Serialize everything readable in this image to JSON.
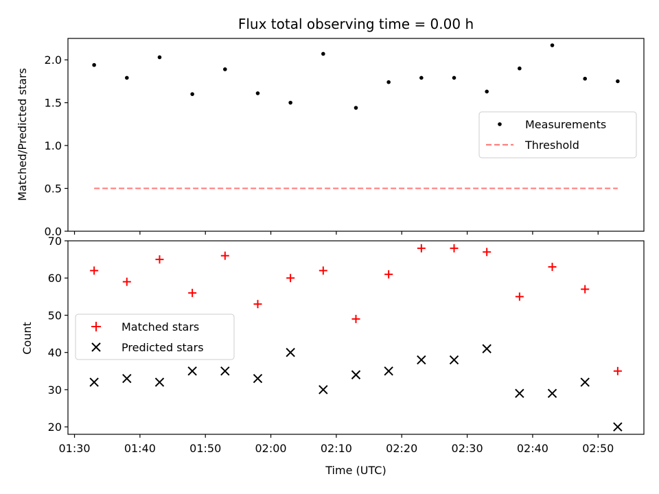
{
  "chart_data": [
    {
      "type": "scatter",
      "title": "Flux total observing time = 0.00 h",
      "xlabel": "",
      "ylabel": "Matched/Predicted stars",
      "ylim": [
        0,
        2.25
      ],
      "yticks": [
        "0.0",
        "0.5",
        "1.0",
        "1.5",
        "2.0"
      ],
      "x": [
        "01:33",
        "01:38",
        "01:43",
        "01:48",
        "01:53",
        "01:58",
        "02:03",
        "02:08",
        "02:13",
        "02:18",
        "02:23",
        "02:28",
        "02:33",
        "02:38",
        "02:43",
        "02:48",
        "02:53"
      ],
      "series": [
        {
          "name": "Measurements",
          "marker": "dot",
          "color": "#000000",
          "values": [
            1.94,
            1.79,
            2.03,
            1.6,
            1.89,
            1.61,
            1.5,
            2.07,
            1.44,
            1.74,
            1.79,
            1.79,
            1.63,
            1.9,
            2.17,
            1.78,
            1.75
          ]
        },
        {
          "name": "Threshold",
          "marker": "dashed-line",
          "color": "#ff7f7f",
          "x_range": [
            "01:33",
            "02:53"
          ],
          "values": [
            0.5,
            0.5
          ]
        }
      ],
      "legend_position": "center-right"
    },
    {
      "type": "scatter",
      "xlabel": "Time (UTC)",
      "ylabel": "Count",
      "ylim": [
        18,
        70
      ],
      "xlim": [
        "01:29",
        "02:57"
      ],
      "yticks": [
        "20",
        "30",
        "40",
        "50",
        "60",
        "70"
      ],
      "xticks": [
        "01:30",
        "01:40",
        "01:50",
        "02:00",
        "02:10",
        "02:20",
        "02:30",
        "02:40",
        "02:50"
      ],
      "x": [
        "01:33",
        "01:38",
        "01:43",
        "01:48",
        "01:53",
        "01:58",
        "02:03",
        "02:08",
        "02:13",
        "02:18",
        "02:23",
        "02:28",
        "02:33",
        "02:38",
        "02:43",
        "02:48",
        "02:53"
      ],
      "series": [
        {
          "name": "Matched stars",
          "marker": "plus",
          "color": "#ff0000",
          "values": [
            62,
            59,
            65,
            56,
            66,
            53,
            60,
            62,
            49,
            61,
            68,
            68,
            67,
            55,
            63,
            57,
            35
          ]
        },
        {
          "name": "Predicted stars",
          "marker": "x",
          "color": "#000000",
          "values": [
            32,
            33,
            32,
            35,
            35,
            33,
            40,
            30,
            34,
            35,
            38,
            38,
            41,
            29,
            29,
            32,
            20
          ]
        }
      ],
      "legend_position": "center-left"
    }
  ]
}
